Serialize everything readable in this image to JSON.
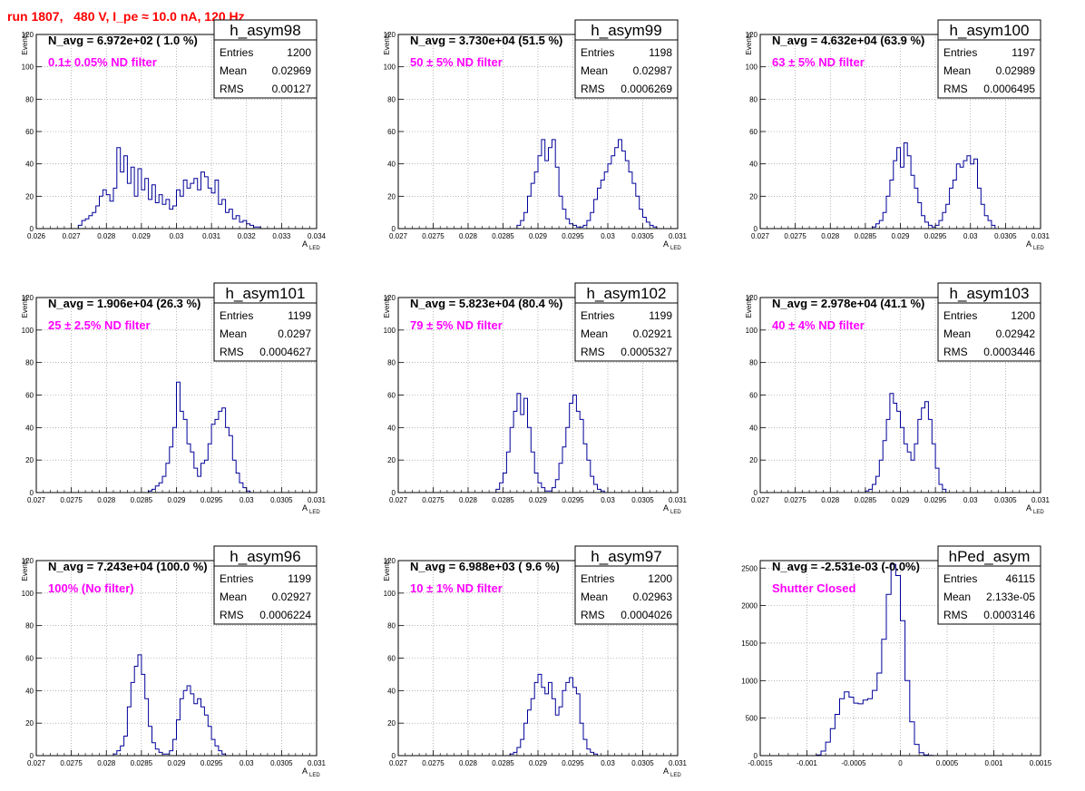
{
  "page": {
    "title": "run 1807,   480 V, I_pe ≈ 10.0 nA, 120 Hz"
  },
  "chart_data": [
    {
      "type": "bar",
      "title": "h_asym98",
      "navg": "N_avg = 6.972e+02 ( 1.0 %)",
      "filter_label": "0.1± 0.05% ND filter",
      "ylabel": "Events",
      "xlabel": "A",
      "xlabel_sub": "LED",
      "xlim": [
        0.026,
        0.034
      ],
      "ylim": [
        0,
        120
      ],
      "xticks": [
        0.026,
        0.027,
        0.028,
        0.029,
        0.03,
        0.031,
        0.032,
        0.033,
        0.034
      ],
      "xtick_labels": [
        "0.026",
        "0.027",
        "0.028",
        "0.029",
        "0.03",
        "0.031",
        "0.032",
        "0.033",
        "0.034"
      ],
      "yticks": [
        0,
        20,
        40,
        60,
        80,
        100,
        120
      ],
      "ytick_labels": [
        "0",
        "20",
        "40",
        "60",
        "80",
        "100",
        "120"
      ],
      "grid": true,
      "stats": {
        "Entries": "1200",
        "Mean": "0.02969",
        "RMS": "0.00127"
      },
      "bin_start": 0.0272,
      "bin_width": 0.0001,
      "counts": [
        2,
        5,
        6,
        8,
        10,
        14,
        20,
        24,
        21,
        17,
        25,
        50,
        35,
        45,
        28,
        38,
        20,
        37,
        24,
        31,
        18,
        27,
        16,
        21,
        15,
        18,
        12,
        14,
        24,
        20,
        30,
        25,
        28,
        31,
        24,
        35,
        32,
        25,
        22,
        30,
        15,
        18,
        10,
        12,
        6,
        8,
        4,
        5,
        3,
        2,
        1,
        1,
        0
      ]
    },
    {
      "type": "bar",
      "title": "h_asym99",
      "navg": "N_avg = 3.730e+04 (51.5 %)",
      "filter_label": "50 ± 5% ND filter",
      "ylabel": "Events",
      "xlabel": "A",
      "xlabel_sub": "LED",
      "xlim": [
        0.027,
        0.031
      ],
      "ylim": [
        0,
        120
      ],
      "xticks": [
        0.027,
        0.0275,
        0.028,
        0.0285,
        0.029,
        0.0295,
        0.03,
        0.0305,
        0.031
      ],
      "xtick_labels": [
        "0.027",
        "0.0275",
        "0.028",
        "0.0285",
        "0.029",
        "0.0295",
        "0.03",
        "0.0305",
        "0.031"
      ],
      "yticks": [
        0,
        20,
        40,
        60,
        80,
        100,
        120
      ],
      "ytick_labels": [
        "0",
        "20",
        "40",
        "60",
        "80",
        "100",
        "120"
      ],
      "grid": true,
      "stats": {
        "Entries": "1198",
        "Mean": "0.02987",
        "RMS": "0.0006269"
      },
      "bin_start": 0.0287,
      "bin_width": 5e-05,
      "counts": [
        2,
        5,
        10,
        20,
        28,
        35,
        45,
        55,
        42,
        50,
        55,
        38,
        20,
        12,
        6,
        3,
        2,
        1,
        1,
        2,
        5,
        10,
        18,
        25,
        30,
        35,
        40,
        45,
        50,
        55,
        48,
        42,
        35,
        28,
        20,
        12,
        7,
        4,
        2,
        1
      ]
    },
    {
      "type": "bar",
      "title": "h_asym100",
      "navg": "N_avg = 4.632e+04 (63.9 %)",
      "filter_label": "63 ± 5% ND filter",
      "ylabel": "Events",
      "xlabel": "A",
      "xlabel_sub": "LED",
      "xlim": [
        0.027,
        0.031
      ],
      "ylim": [
        0,
        120
      ],
      "xticks": [
        0.027,
        0.0275,
        0.028,
        0.0285,
        0.029,
        0.0295,
        0.03,
        0.0305,
        0.031
      ],
      "xtick_labels": [
        "0.027",
        "0.0275",
        "0.028",
        "0.0285",
        "0.029",
        "0.0295",
        "0.03",
        "0.0305",
        "0.031"
      ],
      "yticks": [
        0,
        20,
        40,
        60,
        80,
        100,
        120
      ],
      "ytick_labels": [
        "0",
        "20",
        "40",
        "60",
        "80",
        "100",
        "120"
      ],
      "grid": true,
      "stats": {
        "Entries": "1197",
        "Mean": "0.02989",
        "RMS": "0.0006495"
      },
      "bin_start": 0.0286,
      "bin_width": 5e-05,
      "counts": [
        1,
        3,
        5,
        10,
        20,
        30,
        42,
        50,
        38,
        53,
        45,
        33,
        25,
        16,
        8,
        4,
        2,
        1,
        2,
        5,
        10,
        15,
        25,
        30,
        40,
        38,
        42,
        45,
        40,
        43,
        25,
        15,
        8,
        5,
        2
      ]
    },
    {
      "type": "bar",
      "title": "h_asym101",
      "navg": "N_avg = 1.906e+04 (26.3 %)",
      "filter_label": "25 ± 2.5% ND filter",
      "ylabel": "Events",
      "xlabel": "A",
      "xlabel_sub": "LED",
      "xlim": [
        0.027,
        0.031
      ],
      "ylim": [
        0,
        120
      ],
      "xticks": [
        0.027,
        0.0275,
        0.028,
        0.0285,
        0.029,
        0.0295,
        0.03,
        0.0305,
        0.031
      ],
      "xtick_labels": [
        "0.027",
        "0.0275",
        "0.028",
        "0.0285",
        "0.029",
        "0.0295",
        "0.03",
        "0.0305",
        "0.031"
      ],
      "yticks": [
        0,
        20,
        40,
        60,
        80,
        100,
        120
      ],
      "ytick_labels": [
        "0",
        "20",
        "40",
        "60",
        "80",
        "100",
        "120"
      ],
      "grid": true,
      "stats": {
        "Entries": "1199",
        "Mean": "0.0297",
        "RMS": "0.0004627"
      },
      "bin_start": 0.0286,
      "bin_width": 5e-05,
      "counts": [
        1,
        2,
        4,
        6,
        10,
        18,
        28,
        40,
        68,
        50,
        45,
        30,
        25,
        15,
        10,
        18,
        20,
        30,
        42,
        45,
        50,
        52,
        40,
        35,
        20,
        12,
        6,
        3,
        1
      ]
    },
    {
      "type": "bar",
      "title": "h_asym102",
      "navg": "N_avg = 5.823e+04 (80.4 %)",
      "filter_label": "79 ± 5% ND filter",
      "ylabel": "Events",
      "xlabel": "A",
      "xlabel_sub": "LED",
      "xlim": [
        0.027,
        0.031
      ],
      "ylim": [
        0,
        120
      ],
      "xticks": [
        0.027,
        0.0275,
        0.028,
        0.0285,
        0.029,
        0.0295,
        0.03,
        0.0305,
        0.031
      ],
      "xtick_labels": [
        "0.027",
        "0.0275",
        "0.028",
        "0.0285",
        "0.029",
        "0.0295",
        "0.03",
        "0.0305",
        "0.031"
      ],
      "yticks": [
        0,
        20,
        40,
        60,
        80,
        100,
        120
      ],
      "ytick_labels": [
        "0",
        "20",
        "40",
        "60",
        "80",
        "100",
        "120"
      ],
      "grid": true,
      "stats": {
        "Entries": "1199",
        "Mean": "0.02921",
        "RMS": "0.0005327"
      },
      "bin_start": 0.0284,
      "bin_width": 5e-05,
      "counts": [
        2,
        6,
        12,
        25,
        40,
        50,
        61,
        48,
        58,
        40,
        25,
        12,
        6,
        3,
        1,
        1,
        3,
        8,
        18,
        28,
        40,
        55,
        60,
        50,
        45,
        30,
        20,
        10,
        5,
        2,
        1
      ]
    },
    {
      "type": "bar",
      "title": "h_asym103",
      "navg": "N_avg = 2.978e+04 (41.1 %)",
      "filter_label": "40 ± 4% ND filter",
      "ylabel": "Events",
      "xlabel": "A",
      "xlabel_sub": "LED",
      "xlim": [
        0.027,
        0.031
      ],
      "ylim": [
        0,
        120
      ],
      "xticks": [
        0.027,
        0.0275,
        0.028,
        0.0285,
        0.029,
        0.0295,
        0.03,
        0.0305,
        0.031
      ],
      "xtick_labels": [
        "0.027",
        "0.0275",
        "0.028",
        "0.0285",
        "0.029",
        "0.0295",
        "0.03",
        "0.0305",
        "0.031"
      ],
      "yticks": [
        0,
        20,
        40,
        60,
        80,
        100,
        120
      ],
      "ytick_labels": [
        "0",
        "20",
        "40",
        "60",
        "80",
        "100",
        "120"
      ],
      "grid": true,
      "stats": {
        "Entries": "1200",
        "Mean": "0.02942",
        "RMS": "0.0003446"
      },
      "bin_start": 0.0285,
      "bin_width": 5e-05,
      "counts": [
        1,
        2,
        5,
        10,
        20,
        32,
        45,
        61,
        55,
        50,
        40,
        30,
        25,
        20,
        30,
        45,
        52,
        56,
        45,
        30,
        15,
        5,
        2
      ]
    },
    {
      "type": "bar",
      "title": "h_asym96",
      "navg": "N_avg = 7.243e+04 (100.0 %)",
      "filter_label": "100% (No filter)",
      "ylabel": "Events",
      "xlabel": "A",
      "xlabel_sub": "LED",
      "xlim": [
        0.027,
        0.031
      ],
      "ylim": [
        0,
        120
      ],
      "xticks": [
        0.027,
        0.0275,
        0.028,
        0.0285,
        0.029,
        0.0295,
        0.03,
        0.0305,
        0.031
      ],
      "xtick_labels": [
        "0.027",
        "0.0275",
        "0.028",
        "0.0285",
        "0.029",
        "0.0295",
        "0.03",
        "0.0305",
        "0.031"
      ],
      "yticks": [
        0,
        20,
        40,
        60,
        80,
        100,
        120
      ],
      "ytick_labels": [
        "0",
        "20",
        "40",
        "60",
        "80",
        "100",
        "120"
      ],
      "grid": true,
      "stats": {
        "Entries": "1199",
        "Mean": "0.02927",
        "RMS": "0.0006224"
      },
      "bin_start": 0.0281,
      "bin_width": 5e-05,
      "counts": [
        1,
        3,
        6,
        12,
        30,
        45,
        55,
        62,
        50,
        35,
        18,
        8,
        4,
        2,
        1,
        1,
        3,
        10,
        22,
        35,
        40,
        43,
        38,
        32,
        35,
        30,
        25,
        18,
        10,
        6,
        3,
        1
      ]
    },
    {
      "type": "bar",
      "title": "h_asym97",
      "navg": "N_avg = 6.988e+03 ( 9.6 %)",
      "filter_label": "10 ± 1% ND filter",
      "ylabel": "Events",
      "xlabel": "A",
      "xlabel_sub": "LED",
      "xlim": [
        0.027,
        0.031
      ],
      "ylim": [
        0,
        120
      ],
      "xticks": [
        0.027,
        0.0275,
        0.028,
        0.0285,
        0.029,
        0.0295,
        0.03,
        0.0305,
        0.031
      ],
      "xtick_labels": [
        "0.027",
        "0.0275",
        "0.028",
        "0.0285",
        "0.029",
        "0.0295",
        "0.03",
        "0.0305",
        "0.031"
      ],
      "yticks": [
        0,
        20,
        40,
        60,
        80,
        100,
        120
      ],
      "ytick_labels": [
        "0",
        "20",
        "40",
        "60",
        "80",
        "100",
        "120"
      ],
      "grid": true,
      "stats": {
        "Entries": "1200",
        "Mean": "0.02963",
        "RMS": "0.0004026"
      },
      "bin_start": 0.0286,
      "bin_width": 5e-05,
      "counts": [
        1,
        2,
        5,
        10,
        20,
        28,
        35,
        45,
        50,
        42,
        38,
        45,
        35,
        25,
        30,
        40,
        45,
        48,
        42,
        38,
        20,
        10,
        4,
        2,
        1
      ]
    },
    {
      "type": "bar",
      "title": "hPed_asym",
      "navg": "N_avg = -2.531e-03 (-0.0%)",
      "filter_label": "Shutter Closed",
      "ylabel": "",
      "xlabel": "",
      "xlabel_sub": "",
      "xlim": [
        -0.0015,
        0.0015
      ],
      "ylim": [
        0,
        2600
      ],
      "xticks": [
        -0.0015,
        -0.001,
        -0.0005,
        0,
        0.0005,
        0.001,
        0.0015
      ],
      "xtick_labels": [
        "-0.0015",
        "-0.001",
        "-0.0005",
        "0",
        "0.0005",
        "0.001",
        "0.0015"
      ],
      "yticks": [
        0,
        500,
        1000,
        1500,
        2000,
        2500
      ],
      "ytick_labels": [
        "0",
        "500",
        "1000",
        "1500",
        "2000",
        "2500"
      ],
      "grid": true,
      "stats": {
        "Entries": "46115",
        "Mean": "2.133e-05",
        "RMS": "0.0003146"
      },
      "bin_start": -0.0009,
      "bin_width": 5e-05,
      "counts": [
        10,
        60,
        180,
        360,
        550,
        760,
        850,
        780,
        700,
        690,
        740,
        760,
        870,
        1100,
        1550,
        2150,
        2550,
        2400,
        1800,
        1000,
        450,
        150,
        40,
        10,
        2
      ]
    }
  ]
}
